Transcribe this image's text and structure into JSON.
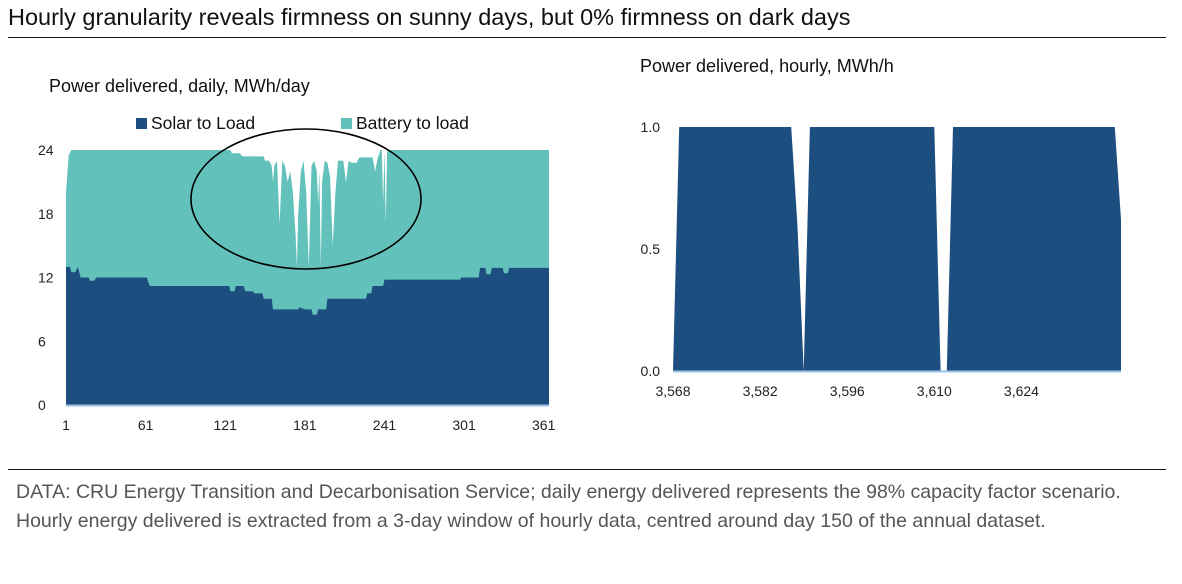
{
  "title": "Hourly granularity reveals firmness on sunny days, but 0% firmness on dark days",
  "note": "DATA: CRU Energy Transition and Decarbonisation Service; daily energy delivered represents the 98% capacity factor scenario. Hourly energy delivered is extracted from a 3-day window of hourly data, centred around day 150 of the annual dataset.",
  "colors": {
    "solar": "#1c4e80",
    "battery": "#62c2bb",
    "axis": "#9dc3e6",
    "ellipse": "#000000"
  },
  "chart_data": [
    {
      "type": "area",
      "stacked": true,
      "title": "Power delivered, daily, MWh/day",
      "xlabel": "",
      "ylabel": "",
      "xlim": [
        1,
        365
      ],
      "ylim": [
        0,
        24
      ],
      "x_ticks": [
        1,
        61,
        121,
        181,
        241,
        301,
        361
      ],
      "y_ticks": [
        0,
        6,
        12,
        18,
        24
      ],
      "legend": "top",
      "annotation": "ellipse around dips in total delivery (days ~100-270)",
      "series": [
        {
          "name": "Solar to Load",
          "points": [
            [
              1,
              13
            ],
            [
              4,
              13
            ],
            [
              5,
              12.5
            ],
            [
              8,
              12.5
            ],
            [
              10,
              13
            ],
            [
              12,
              12
            ],
            [
              18,
              12
            ],
            [
              19,
              11.7
            ],
            [
              22,
              11.7
            ],
            [
              24,
              12
            ],
            [
              62,
              12
            ],
            [
              64,
              11.2
            ],
            [
              124,
              11.2
            ],
            [
              125,
              10.7
            ],
            [
              128,
              10.7
            ],
            [
              129,
              11.2
            ],
            [
              135,
              11.2
            ],
            [
              136,
              10.7
            ],
            [
              142,
              10.7
            ],
            [
              143,
              10.5
            ],
            [
              149,
              10.5
            ],
            [
              150,
              10
            ],
            [
              156,
              10
            ],
            [
              157,
              9
            ],
            [
              176,
              9
            ],
            [
              177,
              9.2
            ],
            [
              181,
              9
            ],
            [
              186,
              9
            ],
            [
              187,
              8.5
            ],
            [
              190,
              8.5
            ],
            [
              191,
              9
            ],
            [
              197,
              9
            ],
            [
              198,
              10
            ],
            [
              227,
              10
            ],
            [
              228,
              10.5
            ],
            [
              231,
              10.5
            ],
            [
              232,
              11.2
            ],
            [
              240,
              11.2
            ],
            [
              241,
              11.8
            ],
            [
              298,
              11.8
            ],
            [
              299,
              12
            ],
            [
              312,
              12
            ],
            [
              313,
              12.9
            ],
            [
              317,
              12.9
            ],
            [
              318,
              12.3
            ],
            [
              321,
              12.3
            ],
            [
              322,
              12.9
            ],
            [
              330,
              12.9
            ],
            [
              331,
              12.4
            ],
            [
              334,
              12.4
            ],
            [
              335,
              12.9
            ],
            [
              365,
              12.9
            ]
          ]
        },
        {
          "name": "Battery to load",
          "points": [
            [
              1,
              20
            ],
            [
              3,
              23.5
            ],
            [
              5,
              24
            ],
            [
              125,
              24
            ],
            [
              126,
              23.7
            ],
            [
              132,
              23.7
            ],
            [
              134,
              23.4
            ],
            [
              150,
              23.4
            ],
            [
              151,
              23
            ],
            [
              154,
              23
            ],
            [
              156,
              22.5
            ],
            [
              157,
              21
            ],
            [
              158,
              22.5
            ],
            [
              160,
              23
            ],
            [
              162,
              17
            ],
            [
              164,
              23
            ],
            [
              166,
              22.5
            ],
            [
              168,
              21
            ],
            [
              170,
              22
            ],
            [
              172,
              20
            ],
            [
              174,
              16
            ],
            [
              175,
              13
            ],
            [
              176,
              18
            ],
            [
              178,
              22
            ],
            [
              180,
              23
            ],
            [
              182,
              20
            ],
            [
              184,
              13
            ],
            [
              185,
              18
            ],
            [
              186,
              22.5
            ],
            [
              188,
              23
            ],
            [
              190,
              22
            ],
            [
              191,
              19
            ],
            [
              192,
              22
            ],
            [
              193,
              13
            ],
            [
              194,
              21
            ],
            [
              196,
              23
            ],
            [
              198,
              22.8
            ],
            [
              200,
              21.5
            ],
            [
              202,
              15
            ],
            [
              204,
              20
            ],
            [
              206,
              23
            ],
            [
              210,
              23
            ],
            [
              212,
              21
            ],
            [
              214,
              23
            ],
            [
              216,
              22.8
            ],
            [
              220,
              22.8
            ],
            [
              222,
              23.3
            ],
            [
              228,
              23.3
            ],
            [
              232,
              23.3
            ],
            [
              234,
              22
            ],
            [
              236,
              23.3
            ],
            [
              238,
              24
            ],
            [
              239,
              24
            ],
            [
              240,
              19
            ],
            [
              241,
              24
            ],
            [
              242,
              17
            ],
            [
              243,
              24
            ],
            [
              365,
              24
            ]
          ]
        }
      ]
    },
    {
      "type": "area",
      "title": "Power delivered, hourly, MWh/h",
      "xlabel": "",
      "ylabel": "",
      "xlim": [
        3568,
        3640
      ],
      "ylim": [
        0,
        1
      ],
      "x_ticks": [
        "3,568",
        "3,582",
        "3,596",
        "3,610",
        "3,624"
      ],
      "y_ticks": [
        "0.0",
        "0.5",
        "1.0"
      ],
      "x": [
        3568,
        3569,
        3587,
        3588,
        3589,
        3590,
        3610,
        3611,
        3612,
        3613,
        3639,
        3640
      ],
      "values": [
        0,
        1,
        1,
        0.6,
        0,
        1,
        1,
        0,
        0,
        1,
        1,
        0.62
      ]
    }
  ]
}
